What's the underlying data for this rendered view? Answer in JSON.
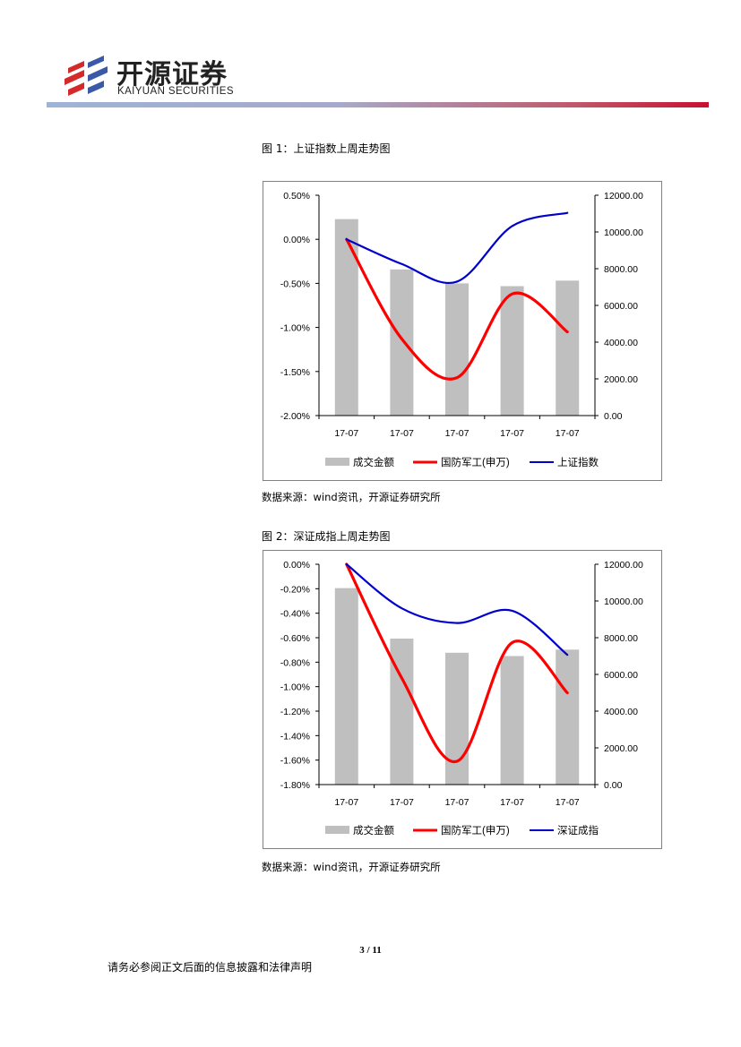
{
  "header": {
    "logo_cn": "开源证券",
    "logo_en": "KAIYUAN SECURITIES",
    "colors": {
      "logo_red": "#d42a2a",
      "rule_start": "#9db4d6",
      "rule_end": "#c8102e"
    }
  },
  "figures": [
    {
      "title": "图 1：上证指数上周走势图",
      "source": "数据来源：wind资讯，开源证券研究所"
    },
    {
      "title": "图 2：深证成指上周走势图",
      "source": "数据来源：wind资讯，开源证券研究所"
    }
  ],
  "chart_data": [
    {
      "type": "bar+line",
      "categories": [
        "17-07",
        "17-07",
        "17-07",
        "17-07",
        "17-07"
      ],
      "y_left_ticks": [
        "0.50%",
        "0.00%",
        "-0.50%",
        "-1.00%",
        "-1.50%",
        "-2.00%"
      ],
      "y_left_range": [
        -2.0,
        0.5
      ],
      "y_right_ticks": [
        "12000.00",
        "10000.00",
        "8000.00",
        "6000.00",
        "4000.00",
        "2000.00",
        "0.00"
      ],
      "y_right_range": [
        0,
        12000
      ],
      "series": [
        {
          "name": "成交金额",
          "type": "bar",
          "axis": "right",
          "color": "#bfbfbf",
          "values": [
            10700,
            7960,
            7200,
            7050,
            7350
          ]
        },
        {
          "name": "国防军工(申万)",
          "type": "line",
          "axis": "left",
          "color": "#ff0000",
          "values": [
            0.0,
            -1.13,
            -1.57,
            -0.62,
            -1.05
          ]
        },
        {
          "name": "上证指数",
          "type": "line",
          "axis": "left",
          "color": "#0000cc",
          "values": [
            0.0,
            -0.28,
            -0.48,
            0.15,
            0.3
          ]
        }
      ],
      "legend": "bottom"
    },
    {
      "type": "bar+line",
      "categories": [
        "17-07",
        "17-07",
        "17-07",
        "17-07",
        "17-07"
      ],
      "y_left_ticks": [
        "0.00%",
        "-0.20%",
        "-0.40%",
        "-0.60%",
        "-0.80%",
        "-1.00%",
        "-1.20%",
        "-1.40%",
        "-1.60%",
        "-1.80%"
      ],
      "y_left_range": [
        -1.8,
        0.0
      ],
      "y_right_ticks": [
        "12000.00",
        "10000.00",
        "8000.00",
        "6000.00",
        "4000.00",
        "2000.00",
        "0.00"
      ],
      "y_right_range": [
        0,
        12000
      ],
      "series": [
        {
          "name": "成交金额",
          "type": "bar",
          "axis": "right",
          "color": "#bfbfbf",
          "values": [
            10700,
            7950,
            7180,
            7000,
            7350
          ]
        },
        {
          "name": "国防军工(申万)",
          "type": "line",
          "axis": "left",
          "color": "#ff0000",
          "values": [
            0.0,
            -0.93,
            -1.61,
            -0.64,
            -1.05
          ]
        },
        {
          "name": "深证成指",
          "type": "line",
          "axis": "left",
          "color": "#0000cc",
          "values": [
            0.0,
            -0.36,
            -0.48,
            -0.38,
            -0.74
          ]
        }
      ],
      "legend": "bottom"
    }
  ],
  "page": {
    "number": "3 / 11",
    "footer": "请务必参阅正文后面的信息披露和法律声明"
  }
}
